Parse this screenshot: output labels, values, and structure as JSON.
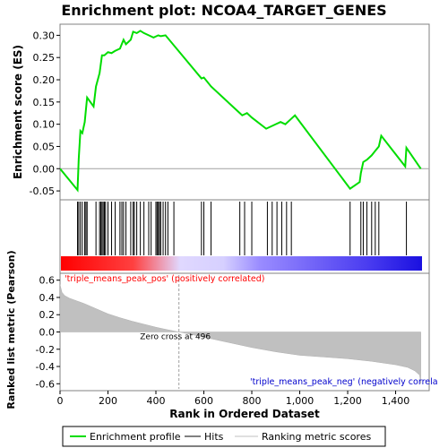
{
  "chart_data": {
    "title": "Enrichment plot: NCOA4_TARGET_GENES",
    "es_panel": {
      "type": "line",
      "ylabel": "Enrichment score (ES)",
      "ylim": [
        -0.07,
        0.325
      ],
      "yticks": [
        -0.05,
        0.0,
        0.05,
        0.1,
        0.15,
        0.2,
        0.25,
        0.3
      ],
      "ytick_labels": [
        "-0.05",
        "0.00",
        "0.05",
        "0.10",
        "0.15",
        "0.20",
        "0.25",
        "0.30"
      ],
      "x": [
        0,
        73,
        78,
        85,
        93,
        103,
        113,
        140,
        150,
        165,
        175,
        185,
        200,
        215,
        230,
        250,
        265,
        275,
        295,
        305,
        320,
        335,
        350,
        370,
        390,
        410,
        420,
        440,
        590,
        600,
        630,
        750,
        760,
        780,
        800,
        860,
        880,
        900,
        920,
        940,
        960,
        980,
        1210,
        1250,
        1255,
        1265,
        1280,
        1300,
        1315,
        1330,
        1340,
        1440,
        1445,
        1505
      ],
      "y": [
        0.0,
        -0.048,
        0.022,
        0.085,
        0.08,
        0.105,
        0.16,
        0.14,
        0.185,
        0.215,
        0.255,
        0.255,
        0.262,
        0.26,
        0.265,
        0.27,
        0.29,
        0.28,
        0.29,
        0.308,
        0.305,
        0.31,
        0.305,
        0.3,
        0.295,
        0.3,
        0.298,
        0.3,
        0.203,
        0.205,
        0.185,
        0.125,
        0.12,
        0.125,
        0.115,
        0.09,
        0.095,
        0.1,
        0.105,
        0.1,
        0.11,
        0.12,
        -0.045,
        -0.03,
        -0.01,
        0.015,
        0.02,
        0.03,
        0.04,
        0.05,
        0.074,
        0.005,
        0.047,
        0.0
      ],
      "series_name": "Enrichment profile"
    },
    "hits_panel": {
      "positions": [
        73,
        78,
        85,
        93,
        103,
        108,
        113,
        150,
        165,
        170,
        175,
        180,
        185,
        190,
        200,
        215,
        230,
        250,
        258,
        265,
        275,
        295,
        305,
        310,
        320,
        335,
        350,
        370,
        380,
        400,
        405,
        410,
        415,
        420,
        430,
        440,
        450,
        475,
        590,
        600,
        630,
        750,
        770,
        800,
        865,
        885,
        905,
        925,
        945,
        965,
        1210,
        1255,
        1265,
        1280,
        1300,
        1315,
        1330,
        1445
      ],
      "series_name": "Hits"
    },
    "rank_panel": {
      "type": "area",
      "ylabel": "Ranked list metric (Pearson)",
      "xlabel": "Rank in Ordered Dataset",
      "xlim": [
        0,
        1540
      ],
      "xticks": [
        0,
        200,
        400,
        600,
        800,
        1000,
        1200,
        1400
      ],
      "xtick_labels": [
        "0",
        "200",
        "400",
        "600",
        "800",
        "1,000",
        "1,200",
        "1,400"
      ],
      "ylim": [
        -0.68,
        0.68
      ],
      "yticks": [
        -0.6,
        -0.4,
        -0.2,
        0.0,
        0.2,
        0.4,
        0.6
      ],
      "ytick_labels": [
        "-0.6",
        "-0.4",
        "-0.2",
        "0.0",
        "0.2",
        "0.4",
        "0.6"
      ],
      "x": [
        0,
        8,
        20,
        40,
        70,
        100,
        150,
        200,
        250,
        300,
        350,
        400,
        450,
        496,
        550,
        600,
        700,
        800,
        900,
        1000,
        1100,
        1200,
        1300,
        1400,
        1450,
        1480,
        1500,
        1505
      ],
      "y": [
        0.55,
        0.46,
        0.42,
        0.39,
        0.36,
        0.33,
        0.27,
        0.21,
        0.165,
        0.125,
        0.09,
        0.055,
        0.025,
        0.0,
        -0.03,
        -0.06,
        -0.12,
        -0.18,
        -0.23,
        -0.27,
        -0.29,
        -0.31,
        -0.34,
        -0.38,
        -0.41,
        -0.45,
        -0.5,
        -0.6
      ],
      "series_name": "Ranking metric scores",
      "zero_cross_label": "Zero cross at 496",
      "zero_cross": 496,
      "pos_label": "'triple_means_peak_pos' (positively correlated)",
      "neg_label": "'triple_means_peak_neg' (negatively correla"
    },
    "legend": {
      "placement": "bottom",
      "entries": [
        "Enrichment profile",
        "Hits",
        "Ranking metric scores"
      ]
    },
    "colors": {
      "profile": "#00dd00",
      "hits": "#000000",
      "rank_fill": "#c0c0c0",
      "pos_label": "#ff0000",
      "neg_label": "#0000cc",
      "bar_pos": "#ff0000",
      "bar_neg": "#0000ff"
    }
  }
}
